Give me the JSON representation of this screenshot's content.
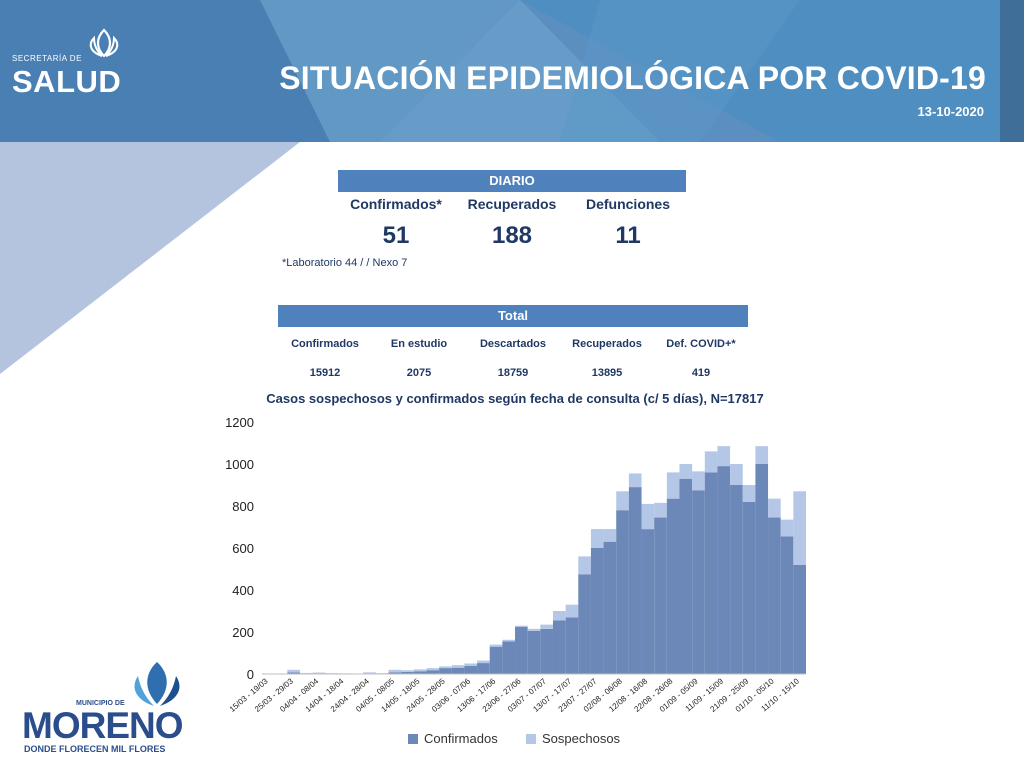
{
  "header": {
    "brand_small": "SECRETARÍA DE",
    "brand_big": "SALUD",
    "title": "SITUACIÓN EPIDEMIOLÓGICA POR COVID-19",
    "date": "13-10-2020"
  },
  "daily": {
    "heading": "DIARIO",
    "columns": [
      "Confirmados*",
      "Recuperados",
      "Defunciones"
    ],
    "values": [
      "51",
      "188",
      "11"
    ],
    "note": "*Laboratorio 44 / / Nexo 7"
  },
  "totals": {
    "heading": "Total",
    "columns": [
      "Confirmados",
      "En estudio",
      "Descartados",
      "Recuperados",
      "Def. COVID+*"
    ],
    "values": [
      "15912",
      "2075",
      "18759",
      "13895",
      "419"
    ]
  },
  "logo": {
    "top": "MUNICIPIO DE",
    "name": "MORENO",
    "tagline": "DONDE FLORECEN MIL FLORES"
  },
  "chart_data": {
    "type": "bar",
    "stacked": true,
    "title": "Casos sospechosos y confirmados según fecha de consulta (c/ 5 días), N=17817",
    "ylim": [
      0,
      1200
    ],
    "yticks": [
      0,
      200,
      400,
      600,
      800,
      1000,
      1200
    ],
    "grid": false,
    "legend_position": "bottom",
    "colors": {
      "confirmados": "#6b88b8",
      "sospechosos": "#b4c7e7"
    },
    "categories": [
      "15/03 - 19/03",
      "20/03 - 24/03",
      "25/03 - 29/03",
      "30/03 - 03/04",
      "04/04 - 08/04",
      "09/04 - 13/04",
      "14/04 - 18/04",
      "19/04 - 23/04",
      "24/04 - 28/04",
      "29/04 - 03/05",
      "04/05 - 08/05",
      "09/05 - 13/05",
      "14/05 - 18/05",
      "19/05 - 23/05",
      "24/05 - 28/05",
      "29/05 - 02/06",
      "03/06 - 07/06",
      "08/06 - 12/06",
      "13/06 - 17/06",
      "18/06 - 22/06",
      "23/06 - 27/06",
      "28/06 - 02/07",
      "03/07 - 07/07",
      "08/07 - 12/07",
      "13/07 - 17/07",
      "18/07 - 22/07",
      "23/07 - 27/07",
      "28/07 - 01/08",
      "02/08 - 06/08",
      "07/08 - 11/08",
      "12/08 - 16/08",
      "17/08 - 21/08",
      "22/08 - 26/08",
      "27/08 - 31/08",
      "01/09 - 05/09",
      "06/09 - 10/09",
      "11/09 - 15/09",
      "16/09 - 20/09",
      "21/09 - 25/09",
      "26/09 - 30/09",
      "01/10 - 05/10",
      "06/10 - 10/10",
      "11/10 - 15/10"
    ],
    "series": [
      {
        "name": "Confirmados",
        "values": [
          0,
          0,
          8,
          3,
          2,
          2,
          1,
          1,
          3,
          2,
          8,
          10,
          12,
          18,
          28,
          30,
          38,
          52,
          130,
          155,
          225,
          205,
          215,
          255,
          270,
          475,
          600,
          630,
          780,
          890,
          690,
          745,
          835,
          930,
          875,
          960,
          990,
          900,
          820,
          1000,
          745,
          655,
          520
        ]
      },
      {
        "name": "Sospechosos",
        "values": [
          0,
          0,
          12,
          2,
          5,
          2,
          2,
          1,
          5,
          2,
          12,
          8,
          10,
          10,
          8,
          12,
          12,
          12,
          10,
          8,
          5,
          10,
          20,
          45,
          60,
          85,
          90,
          60,
          90,
          65,
          120,
          70,
          125,
          70,
          90,
          100,
          95,
          100,
          80,
          85,
          90,
          80,
          350
        ]
      }
    ]
  },
  "legend": {
    "confirmados": "Confirmados",
    "sospechosos": "Sospechosos"
  }
}
